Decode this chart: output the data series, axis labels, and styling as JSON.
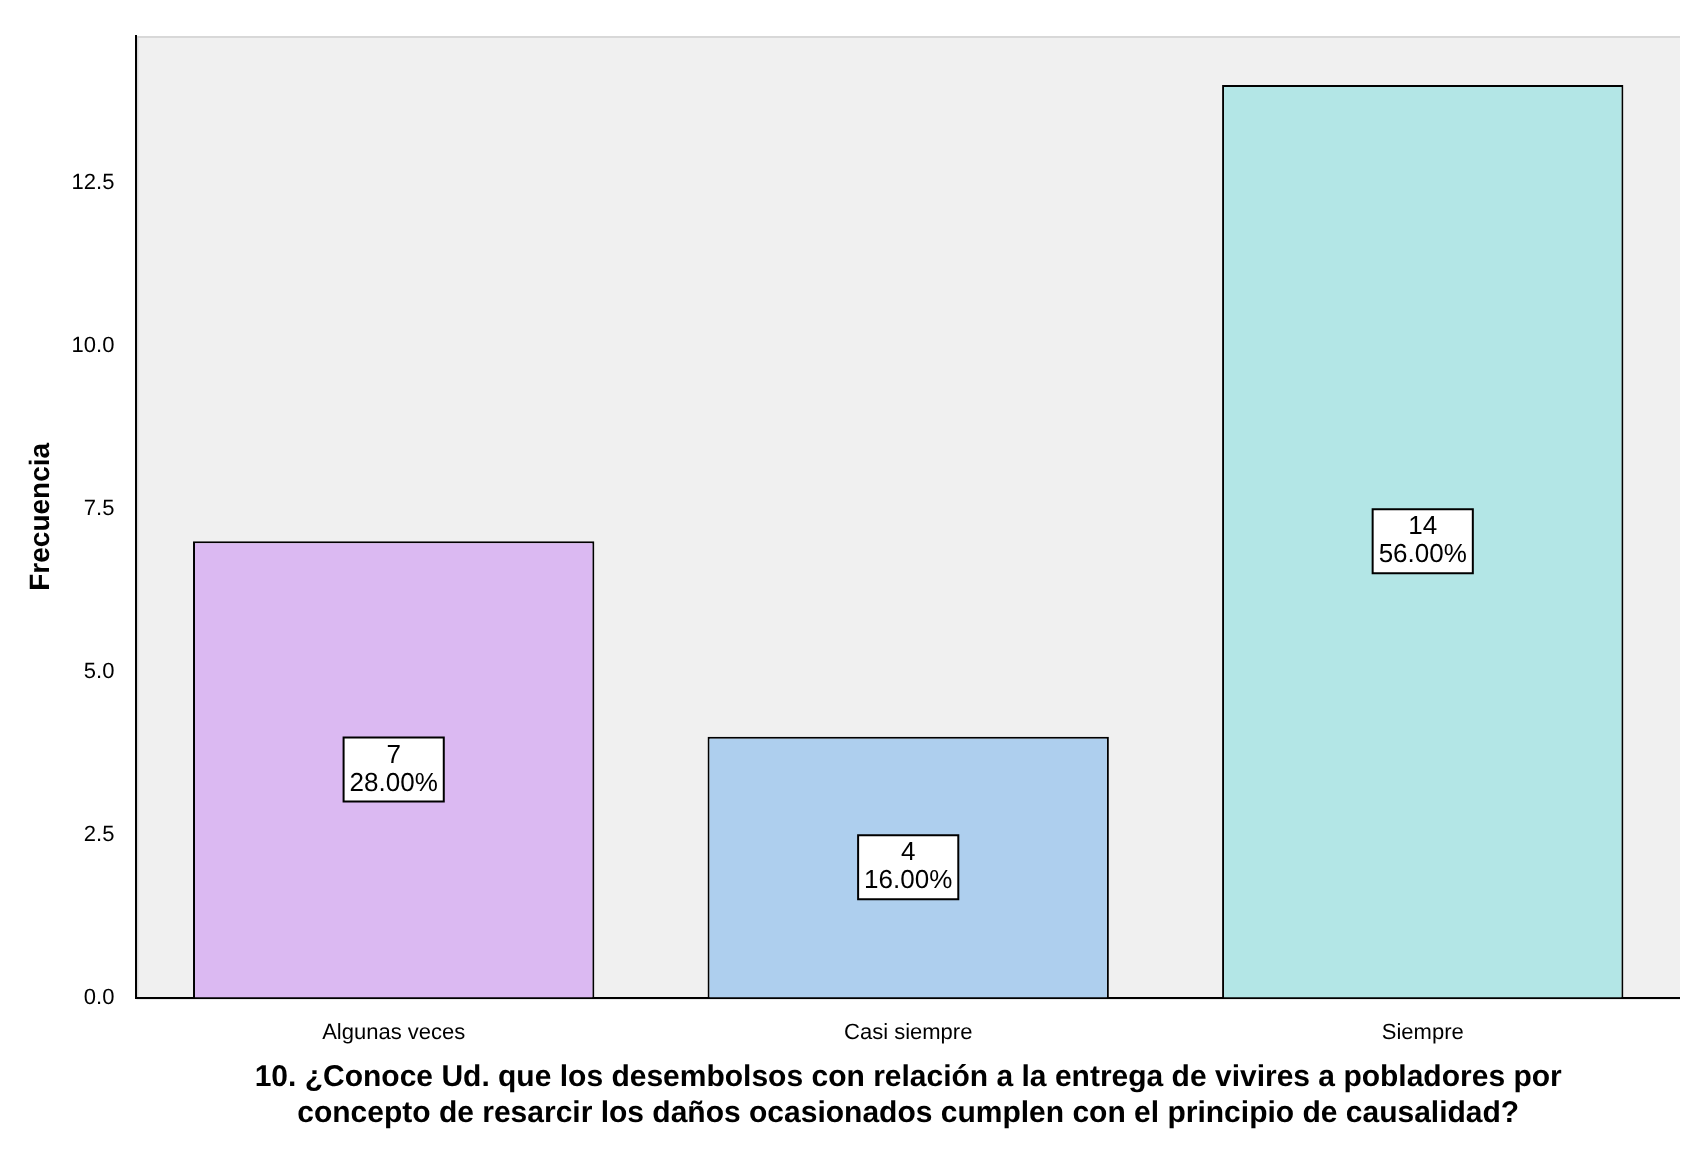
{
  "chart_data": {
    "type": "bar",
    "ylabel": "Frecuencia",
    "xlabel": "10. ¿Conoce Ud. que los desembolsos con relación a la entrega de vivires a pobladores por concepto de resarcir los daños ocasionados cumplen con el principio de causalidad?",
    "categories": [
      "Algunas veces",
      "Casi siempre",
      "Siempre"
    ],
    "values": [
      7,
      4,
      14
    ],
    "colors": [
      "#dbb9f2",
      "#aecfee",
      "#b3e6e6"
    ],
    "value_labels": [
      "7\n28.00%",
      "4\n16.00%",
      "14\n56.00%"
    ],
    "ylim": [
      0,
      14.75
    ],
    "yticks": [
      {
        "value": 0,
        "label": "0.0"
      },
      {
        "value": 2.5,
        "label": "2.5"
      },
      {
        "value": 5,
        "label": "5.0"
      },
      {
        "value": 7.5,
        "label": "7.5"
      },
      {
        "value": 10,
        "label": "10.0"
      },
      {
        "value": 12.5,
        "label": "12.5"
      }
    ],
    "grid": false,
    "legend": false
  }
}
